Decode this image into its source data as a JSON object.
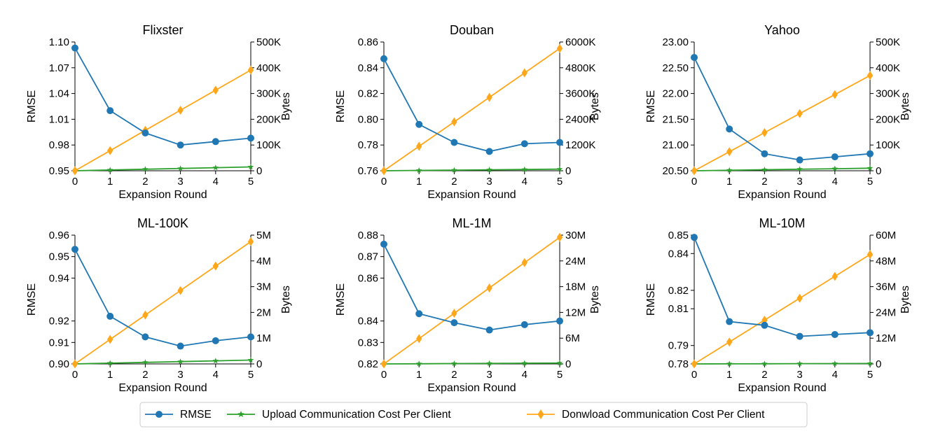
{
  "legend": {
    "rmse": "RMSE",
    "upload": "Upload Communication Cost Per Client",
    "download": "Donwload Communication Cost Per Client"
  },
  "colors": {
    "rmse": "#1f77b4",
    "upload": "#2ca02c",
    "download": "#ffa71a"
  },
  "chart_data": [
    {
      "type": "line",
      "title": "Flixster",
      "xlabel": "Expansion Round",
      "ylabel": "RMSE",
      "y2label": "Bytes",
      "x": [
        0,
        1,
        2,
        3,
        4,
        5
      ],
      "xticks": [
        "0",
        "1",
        "2",
        "3",
        "4",
        "5"
      ],
      "ylim": [
        0.95,
        1.1
      ],
      "yticks": [
        0.95,
        0.98,
        1.01,
        1.04,
        1.07,
        1.1
      ],
      "ytick_labels": [
        "0.95",
        "0.98",
        "1.01",
        "1.04",
        "1.07",
        "1.10"
      ],
      "y2lim": [
        0,
        500000
      ],
      "y2ticks": [
        0,
        100000,
        200000,
        300000,
        400000,
        500000
      ],
      "y2tick_labels": [
        "0",
        "100K",
        "200K",
        "300K",
        "400K",
        "500K"
      ],
      "series": [
        {
          "name": "RMSE",
          "axis": "left",
          "marker": "circle",
          "values": [
            1.093,
            1.02,
            0.994,
            0.98,
            0.984,
            0.988
          ]
        },
        {
          "name": "Upload Communication Cost Per Client",
          "axis": "right",
          "marker": "star",
          "values": [
            0,
            3000,
            6000,
            9000,
            12000,
            15000
          ]
        },
        {
          "name": "Donwload Communication Cost Per Client",
          "axis": "right",
          "marker": "diamond",
          "values": [
            0,
            78000,
            157000,
            235000,
            313000,
            391000
          ]
        }
      ]
    },
    {
      "type": "line",
      "title": "Douban",
      "xlabel": "Expansion Round",
      "ylabel": "RMSE",
      "y2label": "Bytes",
      "x": [
        0,
        1,
        2,
        3,
        4,
        5
      ],
      "xticks": [
        "0",
        "1",
        "2",
        "3",
        "4",
        "5"
      ],
      "ylim": [
        0.76,
        0.86
      ],
      "yticks": [
        0.76,
        0.78,
        0.8,
        0.82,
        0.84,
        0.86
      ],
      "ytick_labels": [
        "0.76",
        "0.78",
        "0.80",
        "0.82",
        "0.84",
        "0.86"
      ],
      "y2lim": [
        0,
        6000000
      ],
      "y2ticks": [
        0,
        1200000,
        2400000,
        3600000,
        4800000,
        6000000
      ],
      "y2tick_labels": [
        "0",
        "1200K",
        "2400K",
        "3600K",
        "4800K",
        "6000K"
      ],
      "series": [
        {
          "name": "RMSE",
          "axis": "left",
          "marker": "circle",
          "values": [
            0.847,
            0.796,
            0.782,
            0.775,
            0.781,
            0.782
          ]
        },
        {
          "name": "Upload Communication Cost Per Client",
          "axis": "right",
          "marker": "star",
          "values": [
            0,
            15000,
            30000,
            45000,
            60000,
            75000
          ]
        },
        {
          "name": "Donwload Communication Cost Per Client",
          "axis": "right",
          "marker": "diamond",
          "values": [
            0,
            1140000,
            2280000,
            3420000,
            4560000,
            5700000
          ]
        }
      ]
    },
    {
      "type": "line",
      "title": "Yahoo",
      "xlabel": "Expansion Round",
      "ylabel": "RMSE",
      "y2label": "Bytes",
      "x": [
        0,
        1,
        2,
        3,
        4,
        5
      ],
      "xticks": [
        "0",
        "1",
        "2",
        "3",
        "4",
        "5"
      ],
      "ylim": [
        20.5,
        23.0
      ],
      "yticks": [
        20.5,
        21.0,
        21.5,
        22.0,
        22.5,
        23.0
      ],
      "ytick_labels": [
        "20.50",
        "21.00",
        "21.50",
        "22.00",
        "22.50",
        "23.00"
      ],
      "y2lim": [
        0,
        500000
      ],
      "y2ticks": [
        0,
        100000,
        200000,
        300000,
        400000,
        500000
      ],
      "y2tick_labels": [
        "0",
        "100K",
        "200K",
        "300K",
        "400K",
        "500K"
      ],
      "series": [
        {
          "name": "RMSE",
          "axis": "left",
          "marker": "circle",
          "values": [
            22.7,
            21.31,
            20.83,
            20.71,
            20.77,
            20.83
          ]
        },
        {
          "name": "Upload Communication Cost Per Client",
          "axis": "right",
          "marker": "star",
          "values": [
            0,
            2000,
            4000,
            6000,
            8000,
            10000
          ]
        },
        {
          "name": "Donwload Communication Cost Per Client",
          "axis": "right",
          "marker": "diamond",
          "values": [
            0,
            74000,
            148000,
            222000,
            296000,
            370000
          ]
        }
      ]
    },
    {
      "type": "line",
      "title": "ML-100K",
      "xlabel": "Expansion Round",
      "ylabel": "RMSE",
      "y2label": "Bytes",
      "x": [
        0,
        1,
        2,
        3,
        4,
        5
      ],
      "xticks": [
        "0",
        "1",
        "2",
        "3",
        "4",
        "5"
      ],
      "ylim": [
        0.9,
        0.96
      ],
      "yticks": [
        0.9,
        0.91,
        0.92,
        0.94,
        0.95,
        0.96
      ],
      "ytick_labels": [
        "0.90",
        "0.91",
        "0.92",
        "0.94",
        "0.95",
        "0.96"
      ],
      "y2lim": [
        0,
        5000000
      ],
      "y2ticks": [
        0,
        1000000,
        2000000,
        3000000,
        4000000,
        5000000
      ],
      "y2tick_labels": [
        "0",
        "1M",
        "2M",
        "3M",
        "4M",
        "5M"
      ],
      "series": [
        {
          "name": "RMSE",
          "axis": "left",
          "marker": "circle",
          "values": [
            0.9534,
            0.9222,
            0.9126,
            0.9083,
            0.9108,
            0.9126
          ]
        },
        {
          "name": "Upload Communication Cost Per Client",
          "axis": "right",
          "marker": "star",
          "values": [
            0,
            30000,
            60000,
            90000,
            120000,
            150000
          ]
        },
        {
          "name": "Donwload Communication Cost Per Client",
          "axis": "right",
          "marker": "diamond",
          "values": [
            0,
            950000,
            1900000,
            2850000,
            3800000,
            4750000
          ]
        }
      ]
    },
    {
      "type": "line",
      "title": "ML-1M",
      "xlabel": "Expansion Round",
      "ylabel": "RMSE",
      "y2label": "Bytes",
      "x": [
        0,
        1,
        2,
        3,
        4,
        5
      ],
      "xticks": [
        "0",
        "1",
        "2",
        "3",
        "4",
        "5"
      ],
      "ylim": [
        0.82,
        0.88
      ],
      "yticks": [
        0.82,
        0.83,
        0.84,
        0.86,
        0.87,
        0.88
      ],
      "ytick_labels": [
        "0.82",
        "0.83",
        "0.84",
        "0.86",
        "0.87",
        "0.88"
      ],
      "y2lim": [
        0,
        30000000
      ],
      "y2ticks": [
        0,
        6000000,
        12000000,
        18000000,
        24000000,
        30000000
      ],
      "y2tick_labels": [
        "0",
        "6M",
        "12M",
        "18M",
        "24M",
        "30M"
      ],
      "series": [
        {
          "name": "RMSE",
          "axis": "left",
          "marker": "circle",
          "values": [
            0.8758,
            0.8434,
            0.8392,
            0.8358,
            0.8383,
            0.84
          ]
        },
        {
          "name": "Upload Communication Cost Per Client",
          "axis": "right",
          "marker": "star",
          "values": [
            0,
            40000,
            80000,
            120000,
            160000,
            200000
          ]
        },
        {
          "name": "Donwload Communication Cost Per Client",
          "axis": "right",
          "marker": "diamond",
          "values": [
            0,
            5900000,
            11800000,
            17700000,
            23600000,
            29500000
          ]
        }
      ]
    },
    {
      "type": "line",
      "title": "ML-10M",
      "xlabel": "Expansion Round",
      "ylabel": "RMSE",
      "y2label": "Bytes",
      "x": [
        0,
        1,
        2,
        3,
        4,
        5
      ],
      "xticks": [
        "0",
        "1",
        "2",
        "3",
        "4",
        "5"
      ],
      "ylim": [
        0.78,
        0.85
      ],
      "yticks": [
        0.78,
        0.79,
        0.81,
        0.82,
        0.84,
        0.85
      ],
      "ytick_labels": [
        "0.78",
        "0.79",
        "0.81",
        "0.82",
        "0.84",
        "0.85"
      ],
      "y2lim": [
        0,
        60000000
      ],
      "y2ticks": [
        0,
        12000000,
        24000000,
        36000000,
        48000000,
        60000000
      ],
      "y2tick_labels": [
        "0",
        "12M",
        "24M",
        "36M",
        "48M",
        "60M"
      ],
      "series": [
        {
          "name": "RMSE",
          "axis": "left",
          "marker": "circle",
          "values": [
            0.8488,
            0.803,
            0.801,
            0.795,
            0.796,
            0.797
          ]
        },
        {
          "name": "Upload Communication Cost Per Client",
          "axis": "right",
          "marker": "star",
          "values": [
            0,
            40000,
            80000,
            120000,
            160000,
            200000
          ]
        },
        {
          "name": "Donwload Communication Cost Per Client",
          "axis": "right",
          "marker": "diamond",
          "values": [
            0,
            10200000,
            20400000,
            30600000,
            40800000,
            51000000
          ]
        }
      ]
    }
  ]
}
